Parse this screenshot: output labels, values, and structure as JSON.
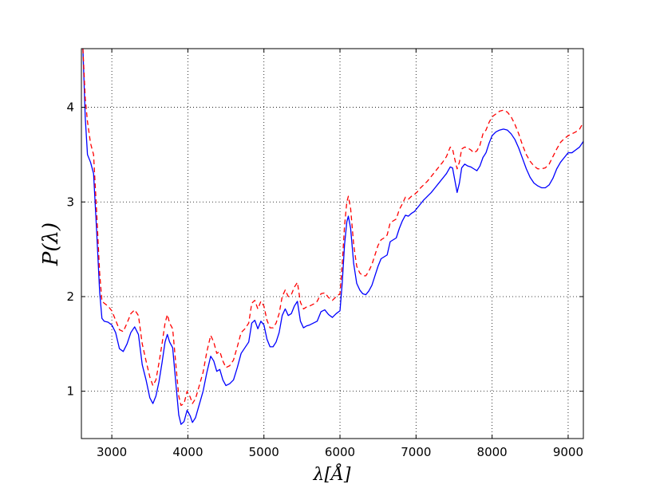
{
  "chart_data": {
    "type": "line",
    "title": "",
    "xlabel": "λ[Å]",
    "ylabel": "P(λ)",
    "xlim": [
      2600,
      9200
    ],
    "ylim": [
      0.5,
      4.62
    ],
    "grid": true,
    "x_ticks": [
      "3000",
      "4000",
      "5000",
      "6000",
      "7000",
      "8000",
      "9000"
    ],
    "y_ticks": [
      "1",
      "2",
      "3",
      "4"
    ],
    "series": [
      {
        "color": "#0000ff",
        "style": "solid",
        "points": [
          [
            2620,
            4.62
          ],
          [
            2650,
            3.9
          ],
          [
            2680,
            3.5
          ],
          [
            2720,
            3.42
          ],
          [
            2760,
            3.3
          ],
          [
            2800,
            2.7
          ],
          [
            2840,
            2.05
          ],
          [
            2870,
            1.77
          ],
          [
            2900,
            1.74
          ],
          [
            2950,
            1.73
          ],
          [
            3000,
            1.7
          ],
          [
            3050,
            1.62
          ],
          [
            3100,
            1.45
          ],
          [
            3150,
            1.42
          ],
          [
            3200,
            1.5
          ],
          [
            3250,
            1.62
          ],
          [
            3300,
            1.68
          ],
          [
            3350,
            1.6
          ],
          [
            3400,
            1.28
          ],
          [
            3450,
            1.12
          ],
          [
            3500,
            0.93
          ],
          [
            3540,
            0.87
          ],
          [
            3580,
            0.95
          ],
          [
            3620,
            1.1
          ],
          [
            3660,
            1.3
          ],
          [
            3700,
            1.52
          ],
          [
            3730,
            1.6
          ],
          [
            3760,
            1.52
          ],
          [
            3800,
            1.46
          ],
          [
            3840,
            1.1
          ],
          [
            3880,
            0.75
          ],
          [
            3910,
            0.65
          ],
          [
            3950,
            0.68
          ],
          [
            3990,
            0.8
          ],
          [
            4030,
            0.74
          ],
          [
            4060,
            0.67
          ],
          [
            4100,
            0.72
          ],
          [
            4150,
            0.86
          ],
          [
            4200,
            1.0
          ],
          [
            4250,
            1.2
          ],
          [
            4300,
            1.37
          ],
          [
            4340,
            1.32
          ],
          [
            4380,
            1.21
          ],
          [
            4420,
            1.23
          ],
          [
            4460,
            1.12
          ],
          [
            4500,
            1.06
          ],
          [
            4550,
            1.08
          ],
          [
            4600,
            1.12
          ],
          [
            4650,
            1.25
          ],
          [
            4700,
            1.4
          ],
          [
            4750,
            1.46
          ],
          [
            4800,
            1.52
          ],
          [
            4840,
            1.72
          ],
          [
            4880,
            1.75
          ],
          [
            4920,
            1.66
          ],
          [
            4960,
            1.74
          ],
          [
            5000,
            1.7
          ],
          [
            5040,
            1.55
          ],
          [
            5080,
            1.47
          ],
          [
            5120,
            1.47
          ],
          [
            5160,
            1.52
          ],
          [
            5200,
            1.62
          ],
          [
            5240,
            1.8
          ],
          [
            5280,
            1.87
          ],
          [
            5320,
            1.8
          ],
          [
            5360,
            1.82
          ],
          [
            5400,
            1.9
          ],
          [
            5440,
            1.95
          ],
          [
            5480,
            1.74
          ],
          [
            5520,
            1.67
          ],
          [
            5560,
            1.69
          ],
          [
            5600,
            1.7
          ],
          [
            5650,
            1.72
          ],
          [
            5700,
            1.74
          ],
          [
            5750,
            1.84
          ],
          [
            5800,
            1.86
          ],
          [
            5850,
            1.81
          ],
          [
            5900,
            1.78
          ],
          [
            5950,
            1.82
          ],
          [
            6000,
            1.85
          ],
          [
            6030,
            2.15
          ],
          [
            6060,
            2.55
          ],
          [
            6090,
            2.79
          ],
          [
            6110,
            2.85
          ],
          [
            6140,
            2.72
          ],
          [
            6180,
            2.35
          ],
          [
            6220,
            2.14
          ],
          [
            6260,
            2.07
          ],
          [
            6300,
            2.03
          ],
          [
            6340,
            2.02
          ],
          [
            6380,
            2.06
          ],
          [
            6420,
            2.12
          ],
          [
            6460,
            2.22
          ],
          [
            6500,
            2.32
          ],
          [
            6540,
            2.4
          ],
          [
            6580,
            2.42
          ],
          [
            6620,
            2.44
          ],
          [
            6660,
            2.58
          ],
          [
            6700,
            2.6
          ],
          [
            6740,
            2.62
          ],
          [
            6780,
            2.72
          ],
          [
            6820,
            2.8
          ],
          [
            6860,
            2.86
          ],
          [
            6900,
            2.85
          ],
          [
            6940,
            2.88
          ],
          [
            6980,
            2.9
          ],
          [
            7020,
            2.94
          ],
          [
            7060,
            2.98
          ],
          [
            7100,
            3.02
          ],
          [
            7150,
            3.06
          ],
          [
            7200,
            3.1
          ],
          [
            7250,
            3.15
          ],
          [
            7300,
            3.2
          ],
          [
            7350,
            3.25
          ],
          [
            7400,
            3.3
          ],
          [
            7450,
            3.37
          ],
          [
            7480,
            3.36
          ],
          [
            7510,
            3.23
          ],
          [
            7540,
            3.1
          ],
          [
            7570,
            3.2
          ],
          [
            7600,
            3.36
          ],
          [
            7640,
            3.4
          ],
          [
            7680,
            3.38
          ],
          [
            7720,
            3.37
          ],
          [
            7760,
            3.35
          ],
          [
            7800,
            3.33
          ],
          [
            7840,
            3.38
          ],
          [
            7880,
            3.47
          ],
          [
            7920,
            3.52
          ],
          [
            7960,
            3.62
          ],
          [
            8000,
            3.7
          ],
          [
            8050,
            3.74
          ],
          [
            8100,
            3.76
          ],
          [
            8150,
            3.77
          ],
          [
            8200,
            3.76
          ],
          [
            8250,
            3.72
          ],
          [
            8300,
            3.66
          ],
          [
            8350,
            3.57
          ],
          [
            8400,
            3.46
          ],
          [
            8450,
            3.35
          ],
          [
            8500,
            3.26
          ],
          [
            8550,
            3.2
          ],
          [
            8600,
            3.17
          ],
          [
            8650,
            3.15
          ],
          [
            8700,
            3.15
          ],
          [
            8750,
            3.18
          ],
          [
            8800,
            3.25
          ],
          [
            8850,
            3.35
          ],
          [
            8900,
            3.42
          ],
          [
            8950,
            3.47
          ],
          [
            9000,
            3.52
          ],
          [
            9050,
            3.52
          ],
          [
            9100,
            3.55
          ],
          [
            9150,
            3.58
          ],
          [
            9200,
            3.64
          ]
        ]
      },
      {
        "color": "#ff0000",
        "style": "dashed",
        "points": [
          [
            2620,
            4.62
          ],
          [
            2650,
            4.1
          ],
          [
            2680,
            3.85
          ],
          [
            2720,
            3.62
          ],
          [
            2760,
            3.5
          ],
          [
            2800,
            2.9
          ],
          [
            2840,
            2.25
          ],
          [
            2870,
            1.95
          ],
          [
            2900,
            1.93
          ],
          [
            2950,
            1.9
          ],
          [
            3000,
            1.85
          ],
          [
            3050,
            1.75
          ],
          [
            3100,
            1.65
          ],
          [
            3150,
            1.63
          ],
          [
            3200,
            1.72
          ],
          [
            3250,
            1.82
          ],
          [
            3300,
            1.86
          ],
          [
            3350,
            1.8
          ],
          [
            3400,
            1.5
          ],
          [
            3450,
            1.32
          ],
          [
            3500,
            1.15
          ],
          [
            3540,
            1.06
          ],
          [
            3580,
            1.12
          ],
          [
            3620,
            1.3
          ],
          [
            3660,
            1.5
          ],
          [
            3700,
            1.72
          ],
          [
            3730,
            1.81
          ],
          [
            3760,
            1.72
          ],
          [
            3800,
            1.66
          ],
          [
            3840,
            1.3
          ],
          [
            3880,
            0.95
          ],
          [
            3910,
            0.85
          ],
          [
            3950,
            0.87
          ],
          [
            3990,
            1.0
          ],
          [
            4030,
            0.94
          ],
          [
            4060,
            0.87
          ],
          [
            4100,
            0.92
          ],
          [
            4150,
            1.06
          ],
          [
            4200,
            1.2
          ],
          [
            4250,
            1.42
          ],
          [
            4300,
            1.59
          ],
          [
            4340,
            1.52
          ],
          [
            4380,
            1.4
          ],
          [
            4420,
            1.42
          ],
          [
            4460,
            1.32
          ],
          [
            4500,
            1.25
          ],
          [
            4550,
            1.27
          ],
          [
            4600,
            1.33
          ],
          [
            4650,
            1.47
          ],
          [
            4700,
            1.62
          ],
          [
            4750,
            1.66
          ],
          [
            4800,
            1.72
          ],
          [
            4840,
            1.93
          ],
          [
            4880,
            1.96
          ],
          [
            4920,
            1.87
          ],
          [
            4960,
            1.95
          ],
          [
            5000,
            1.9
          ],
          [
            5040,
            1.75
          ],
          [
            5080,
            1.67
          ],
          [
            5120,
            1.67
          ],
          [
            5160,
            1.72
          ],
          [
            5200,
            1.82
          ],
          [
            5240,
            2.0
          ],
          [
            5280,
            2.07
          ],
          [
            5320,
            2.0
          ],
          [
            5360,
            2.02
          ],
          [
            5400,
            2.1
          ],
          [
            5440,
            2.15
          ],
          [
            5480,
            1.94
          ],
          [
            5520,
            1.87
          ],
          [
            5560,
            1.89
          ],
          [
            5600,
            1.9
          ],
          [
            5650,
            1.92
          ],
          [
            5700,
            1.95
          ],
          [
            5750,
            2.03
          ],
          [
            5800,
            2.04
          ],
          [
            5850,
            1.99
          ],
          [
            5900,
            1.96
          ],
          [
            5950,
            2.0
          ],
          [
            6000,
            2.03
          ],
          [
            6030,
            2.35
          ],
          [
            6060,
            2.75
          ],
          [
            6090,
            3.0
          ],
          [
            6110,
            3.06
          ],
          [
            6140,
            2.93
          ],
          [
            6180,
            2.55
          ],
          [
            6220,
            2.32
          ],
          [
            6260,
            2.25
          ],
          [
            6300,
            2.22
          ],
          [
            6340,
            2.22
          ],
          [
            6380,
            2.27
          ],
          [
            6420,
            2.34
          ],
          [
            6460,
            2.44
          ],
          [
            6500,
            2.54
          ],
          [
            6540,
            2.6
          ],
          [
            6580,
            2.62
          ],
          [
            6620,
            2.65
          ],
          [
            6660,
            2.78
          ],
          [
            6700,
            2.8
          ],
          [
            6740,
            2.82
          ],
          [
            6780,
            2.92
          ],
          [
            6820,
            2.98
          ],
          [
            6860,
            3.05
          ],
          [
            6900,
            3.03
          ],
          [
            6940,
            3.06
          ],
          [
            6980,
            3.08
          ],
          [
            7020,
            3.11
          ],
          [
            7060,
            3.15
          ],
          [
            7100,
            3.18
          ],
          [
            7150,
            3.22
          ],
          [
            7200,
            3.27
          ],
          [
            7250,
            3.32
          ],
          [
            7300,
            3.37
          ],
          [
            7350,
            3.42
          ],
          [
            7400,
            3.48
          ],
          [
            7450,
            3.58
          ],
          [
            7480,
            3.56
          ],
          [
            7510,
            3.45
          ],
          [
            7540,
            3.35
          ],
          [
            7570,
            3.42
          ],
          [
            7600,
            3.56
          ],
          [
            7640,
            3.58
          ],
          [
            7680,
            3.57
          ],
          [
            7720,
            3.55
          ],
          [
            7760,
            3.52
          ],
          [
            7800,
            3.54
          ],
          [
            7840,
            3.6
          ],
          [
            7880,
            3.72
          ],
          [
            7920,
            3.76
          ],
          [
            7960,
            3.84
          ],
          [
            8000,
            3.9
          ],
          [
            8050,
            3.93
          ],
          [
            8100,
            3.96
          ],
          [
            8150,
            3.97
          ],
          [
            8200,
            3.95
          ],
          [
            8250,
            3.9
          ],
          [
            8300,
            3.82
          ],
          [
            8350,
            3.72
          ],
          [
            8400,
            3.6
          ],
          [
            8450,
            3.5
          ],
          [
            8500,
            3.43
          ],
          [
            8550,
            3.38
          ],
          [
            8600,
            3.35
          ],
          [
            8650,
            3.35
          ],
          [
            8700,
            3.36
          ],
          [
            8750,
            3.4
          ],
          [
            8800,
            3.48
          ],
          [
            8850,
            3.56
          ],
          [
            8900,
            3.63
          ],
          [
            8950,
            3.67
          ],
          [
            9000,
            3.7
          ],
          [
            9050,
            3.72
          ],
          [
            9100,
            3.74
          ],
          [
            9150,
            3.77
          ],
          [
            9200,
            3.84
          ]
        ]
      }
    ]
  }
}
